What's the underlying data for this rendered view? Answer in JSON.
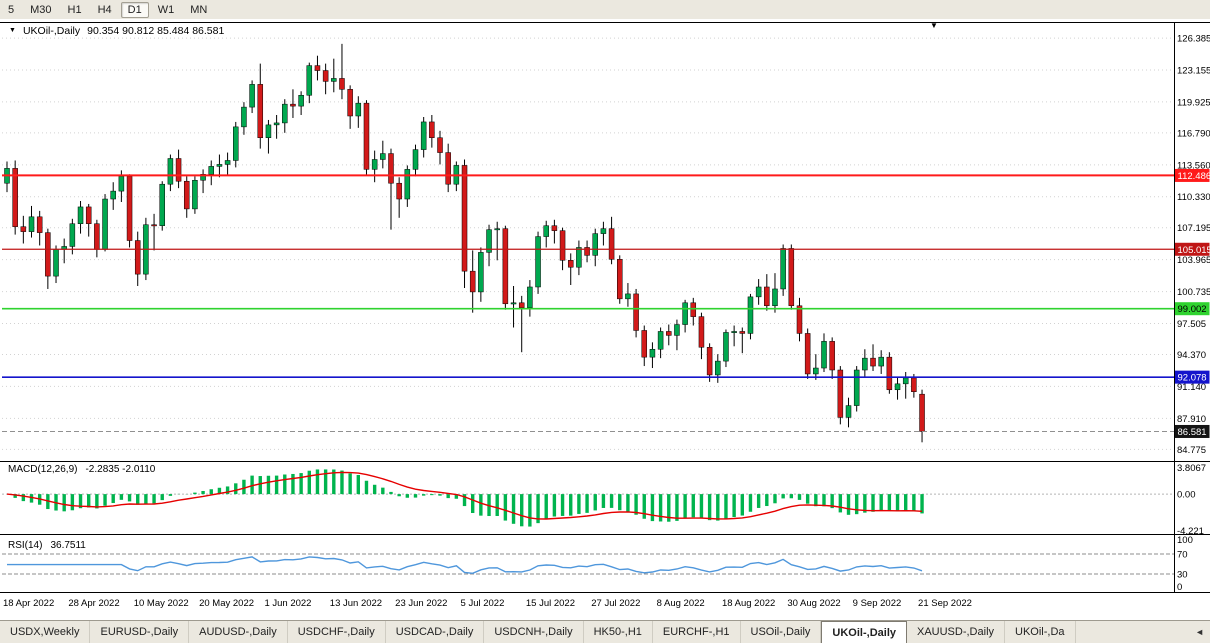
{
  "window": {
    "title_symbol": "UKOil-,Daily",
    "ohlc": "90.354 90.812 85.484 86.581"
  },
  "icons": {
    "title_collapse": "▼",
    "shift_marker": "▼",
    "tab_scroll": "◄"
  },
  "toolbar": {
    "periods": [
      "5",
      "M30",
      "H1",
      "H4",
      "D1",
      "W1",
      "MN"
    ],
    "active": "D1"
  },
  "chart_data": {
    "type": "candlestick",
    "symbol": "UKOil-",
    "timeframe": "Daily",
    "colors": {
      "up": "#00a84f",
      "down": "#d21a1a",
      "wick": "#000000",
      "grid": "#d2d2d2",
      "macd_hist": "#00b44e",
      "macd_signal": "#e60000",
      "rsi_line": "#4f97dc"
    },
    "price_axis": {
      "ticks": [
        "126.385",
        "123.155",
        "119.925",
        "116.790",
        "113.560",
        "110.330",
        "107.195",
        "103.965",
        "100.735",
        "97.505",
        "94.370",
        "91.140",
        "87.910",
        "84.775"
      ],
      "max": 127.1,
      "min": 84.2
    },
    "date_labels": [
      {
        "i": 0,
        "t": "18 Apr 2022"
      },
      {
        "i": 8,
        "t": "28 Apr 2022"
      },
      {
        "i": 16,
        "t": "10 May 2022"
      },
      {
        "i": 24,
        "t": "20 May 2022"
      },
      {
        "i": 32,
        "t": "1 Jun 2022"
      },
      {
        "i": 40,
        "t": "13 Jun 2022"
      },
      {
        "i": 48,
        "t": "23 Jun 2022"
      },
      {
        "i": 56,
        "t": "5 Jul 2022"
      },
      {
        "i": 64,
        "t": "15 Jul 2022"
      },
      {
        "i": 72,
        "t": "27 Jul 2022"
      },
      {
        "i": 80,
        "t": "8 Aug 2022"
      },
      {
        "i": 88,
        "t": "18 Aug 2022"
      },
      {
        "i": 96,
        "t": "30 Aug 2022"
      },
      {
        "i": 104,
        "t": "9 Sep 2022"
      },
      {
        "i": 112,
        "t": "21 Sep 2022"
      }
    ],
    "hlines": [
      {
        "value": 112.486,
        "label": "112.486",
        "color": "#ff1a1a",
        "text_color": "#ffffff",
        "width": 2
      },
      {
        "value": 105.015,
        "label": "105.015",
        "color": "#c01616",
        "text_color": "#ffffff",
        "width": 1.2
      },
      {
        "value": 99.002,
        "label": "99.002",
        "color": "#2fd32f",
        "text_color": "#000000",
        "width": 1.6
      },
      {
        "value": 92.078,
        "label": "92.078",
        "color": "#1414cc",
        "text_color": "#ffffff",
        "width": 1.6
      }
    ],
    "current_price": {
      "value": 86.581,
      "label": "86.581",
      "box_color": "#141414",
      "text_color": "#ffffff"
    },
    "candles": [
      [
        111.7,
        113.9,
        110.8,
        113.2
      ],
      [
        113.2,
        114.0,
        106.5,
        107.3
      ],
      [
        107.3,
        108.4,
        105.6,
        106.8
      ],
      [
        106.8,
        109.4,
        106.2,
        108.3
      ],
      [
        108.3,
        108.9,
        105.4,
        106.7
      ],
      [
        106.7,
        107.1,
        101.0,
        102.3
      ],
      [
        102.3,
        105.4,
        101.6,
        105.0
      ],
      [
        105.0,
        106.1,
        103.6,
        105.3
      ],
      [
        105.3,
        108.1,
        104.5,
        107.6
      ],
      [
        107.6,
        109.9,
        106.6,
        109.3
      ],
      [
        109.3,
        109.6,
        106.3,
        107.6
      ],
      [
        107.6,
        108.0,
        104.2,
        105.0
      ],
      [
        105.0,
        110.6,
        104.8,
        110.1
      ],
      [
        110.1,
        111.8,
        109.0,
        110.9
      ],
      [
        110.9,
        113.0,
        109.8,
        112.4
      ],
      [
        112.4,
        112.6,
        105.2,
        105.9
      ],
      [
        105.9,
        106.8,
        101.3,
        102.5
      ],
      [
        102.5,
        108.2,
        101.9,
        107.5
      ],
      [
        107.5,
        108.6,
        104.9,
        107.4
      ],
      [
        107.4,
        111.9,
        106.9,
        111.6
      ],
      [
        111.6,
        114.6,
        110.9,
        114.2
      ],
      [
        114.2,
        115.1,
        111.2,
        111.9
      ],
      [
        111.9,
        112.4,
        108.2,
        109.1
      ],
      [
        109.1,
        112.4,
        108.6,
        112.0
      ],
      [
        112.0,
        113.1,
        110.7,
        112.6
      ],
      [
        112.6,
        114.0,
        111.5,
        113.4
      ],
      [
        113.4,
        114.6,
        112.3,
        113.6
      ],
      [
        113.6,
        114.8,
        112.5,
        114.0
      ],
      [
        114.0,
        117.9,
        113.3,
        117.4
      ],
      [
        117.4,
        119.9,
        116.6,
        119.4
      ],
      [
        119.4,
        122.1,
        118.8,
        121.7
      ],
      [
        121.7,
        123.8,
        115.2,
        116.3
      ],
      [
        116.3,
        118.1,
        114.7,
        117.6
      ],
      [
        117.6,
        118.6,
        116.2,
        117.8
      ],
      [
        117.8,
        120.2,
        116.8,
        119.7
      ],
      [
        119.7,
        121.2,
        118.3,
        119.5
      ],
      [
        119.5,
        121.0,
        118.6,
        120.6
      ],
      [
        120.6,
        123.9,
        119.8,
        123.6
      ],
      [
        123.6,
        124.6,
        122.1,
        123.1
      ],
      [
        123.1,
        123.8,
        120.7,
        122.0
      ],
      [
        122.0,
        124.3,
        120.9,
        122.3
      ],
      [
        122.3,
        125.8,
        120.2,
        121.2
      ],
      [
        121.2,
        121.6,
        117.2,
        118.5
      ],
      [
        118.5,
        120.5,
        117.3,
        119.8
      ],
      [
        119.8,
        120.1,
        112.5,
        113.1
      ],
      [
        113.1,
        115.0,
        111.8,
        114.1
      ],
      [
        114.1,
        116.0,
        113.2,
        114.7
      ],
      [
        114.7,
        115.2,
        107.0,
        111.7
      ],
      [
        111.7,
        112.3,
        108.2,
        110.1
      ],
      [
        110.1,
        113.5,
        109.3,
        113.1
      ],
      [
        113.1,
        115.6,
        112.4,
        115.1
      ],
      [
        115.1,
        118.4,
        114.3,
        117.9
      ],
      [
        117.9,
        118.6,
        115.3,
        116.3
      ],
      [
        116.3,
        117.0,
        113.6,
        114.8
      ],
      [
        114.8,
        115.7,
        110.8,
        111.6
      ],
      [
        111.6,
        113.9,
        110.9,
        113.5
      ],
      [
        113.5,
        114.1,
        101.1,
        102.8
      ],
      [
        102.8,
        104.9,
        98.6,
        100.7
      ],
      [
        100.7,
        105.2,
        99.7,
        104.7
      ],
      [
        104.7,
        107.5,
        103.3,
        107.0
      ],
      [
        107.0,
        107.8,
        103.9,
        107.1
      ],
      [
        107.1,
        107.4,
        98.9,
        99.5
      ],
      [
        99.5,
        101.3,
        97.1,
        99.6
      ],
      [
        99.6,
        100.3,
        94.6,
        99.1
      ],
      [
        99.1,
        101.9,
        98.2,
        101.2
      ],
      [
        101.2,
        106.8,
        100.5,
        106.3
      ],
      [
        106.3,
        107.9,
        105.2,
        107.4
      ],
      [
        107.4,
        108.0,
        105.6,
        106.9
      ],
      [
        106.9,
        107.2,
        102.9,
        103.9
      ],
      [
        103.9,
        104.6,
        101.4,
        103.2
      ],
      [
        103.2,
        105.9,
        102.4,
        105.2
      ],
      [
        105.2,
        105.9,
        103.7,
        104.4
      ],
      [
        104.4,
        107.1,
        103.3,
        106.6
      ],
      [
        106.6,
        107.8,
        105.4,
        107.1
      ],
      [
        107.1,
        108.3,
        103.5,
        104.0
      ],
      [
        104.0,
        104.4,
        99.5,
        100.0
      ],
      [
        100.0,
        101.6,
        99.2,
        100.5
      ],
      [
        100.5,
        101.0,
        96.1,
        96.8
      ],
      [
        96.8,
        97.3,
        93.2,
        94.1
      ],
      [
        94.1,
        95.6,
        93.0,
        94.9
      ],
      [
        94.9,
        97.1,
        94.0,
        96.7
      ],
      [
        96.7,
        97.4,
        95.3,
        96.3
      ],
      [
        96.3,
        97.9,
        94.8,
        97.4
      ],
      [
        97.4,
        99.9,
        96.6,
        99.6
      ],
      [
        99.6,
        100.1,
        97.3,
        98.2
      ],
      [
        98.2,
        98.6,
        93.9,
        95.1
      ],
      [
        95.1,
        95.5,
        91.6,
        92.3
      ],
      [
        92.3,
        94.4,
        91.5,
        93.7
      ],
      [
        93.7,
        96.9,
        93.1,
        96.6
      ],
      [
        96.6,
        97.3,
        95.2,
        96.7
      ],
      [
        96.7,
        97.1,
        94.5,
        96.5
      ],
      [
        96.5,
        100.5,
        95.9,
        100.2
      ],
      [
        100.2,
        102.0,
        99.4,
        101.2
      ],
      [
        101.2,
        102.5,
        98.8,
        99.3
      ],
      [
        99.3,
        102.6,
        98.6,
        101.0
      ],
      [
        101.0,
        105.5,
        100.3,
        105.1
      ],
      [
        105.1,
        105.5,
        98.9,
        99.3
      ],
      [
        99.3,
        100.1,
        95.7,
        96.5
      ],
      [
        96.5,
        97.0,
        91.9,
        92.4
      ],
      [
        92.4,
        94.4,
        91.8,
        93.0
      ],
      [
        93.0,
        96.5,
        92.6,
        95.7
      ],
      [
        95.7,
        96.1,
        91.9,
        92.8
      ],
      [
        92.8,
        93.2,
        87.3,
        88.0
      ],
      [
        88.0,
        90.0,
        87.0,
        89.2
      ],
      [
        89.2,
        93.2,
        88.6,
        92.8
      ],
      [
        92.8,
        94.9,
        92.1,
        94.0
      ],
      [
        94.0,
        95.4,
        92.7,
        93.2
      ],
      [
        93.2,
        94.8,
        92.4,
        94.1
      ],
      [
        94.1,
        94.6,
        90.4,
        90.8
      ],
      [
        90.8,
        92.0,
        89.8,
        91.4
      ],
      [
        91.4,
        92.6,
        89.9,
        92.0
      ],
      [
        92.0,
        92.4,
        90.0,
        90.6
      ],
      [
        90.354,
        90.812,
        85.484,
        86.581
      ]
    ],
    "macd": {
      "label": "MACD(12,26,9)",
      "values_text": "-2.2835 -2.0110",
      "params": [
        12,
        26,
        9
      ],
      "axis": {
        "max": "3.8067",
        "zero": "0.00",
        "min": "-4.221"
      }
    },
    "rsi": {
      "label": "RSI(14)",
      "value_text": "36.7511",
      "period": 14,
      "levels": [
        70,
        30
      ],
      "axis_labels": [
        "100",
        "70",
        "30",
        "0"
      ]
    }
  },
  "tabs": {
    "items": [
      {
        "label": "USDX,Weekly",
        "active": false
      },
      {
        "label": "EURUSD-,Daily",
        "active": false
      },
      {
        "label": "AUDUSD-,Daily",
        "active": false
      },
      {
        "label": "USDCHF-,Daily",
        "active": false
      },
      {
        "label": "USDCAD-,Daily",
        "active": false
      },
      {
        "label": "USDCNH-,Daily",
        "active": false
      },
      {
        "label": "HK50-,H1",
        "active": false
      },
      {
        "label": "EURCHF-,H1",
        "active": false
      },
      {
        "label": "USOil-,Daily",
        "active": false
      },
      {
        "label": "UKOil-,Daily",
        "active": true
      },
      {
        "label": "XAUUSD-,Daily",
        "active": false
      },
      {
        "label": "UKOil-,Da",
        "active": false
      }
    ]
  }
}
